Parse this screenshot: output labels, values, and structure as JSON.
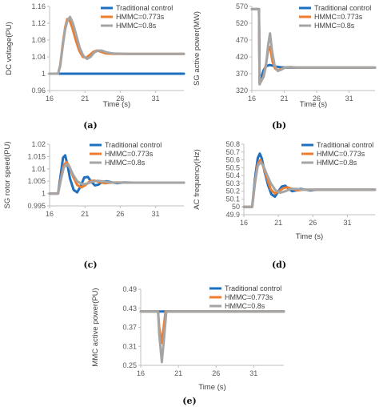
{
  "colors": {
    "traditional": "#1F6FBF",
    "hmmc_0773": "#ED7D31",
    "hmmc_08": "#A5A5A5",
    "axis": "#BFBFBF",
    "text": "#595959"
  },
  "captions": [
    "(a)",
    "(b)",
    "(c)",
    "(d)",
    "(e)"
  ],
  "chart_data": [
    {
      "type": "line",
      "xlabel": "Time (s)",
      "ylabel": "DC voltage(PU)",
      "xlim": [
        16,
        35
      ],
      "xticks": [
        "16",
        "21",
        "26",
        "31"
      ],
      "xtick_values": [
        16,
        21,
        26,
        31
      ],
      "ylim": [
        0.96,
        1.16
      ],
      "yticks": [
        "0.96",
        "1",
        "1.04",
        "1.08",
        "1.12",
        "1.16"
      ],
      "ytick_values": [
        0.96,
        1.0,
        1.04,
        1.08,
        1.12,
        1.16
      ],
      "legend_position": "top-right",
      "series": [
        {
          "name": "Traditional control",
          "x": [
            16,
            35
          ],
          "y": [
            1.0,
            1.0
          ]
        },
        {
          "name": "HMMC=0.773s",
          "x": [
            16,
            17.2,
            17.5,
            17.9,
            18.2,
            18.5,
            18.8,
            19.2,
            19.7,
            20.2,
            20.7,
            21.2,
            21.7,
            22.2,
            22.7,
            23.3,
            24.0,
            25.0,
            27.0,
            30.0,
            35.0
          ],
          "y": [
            1.0,
            1.0,
            1.02,
            1.075,
            1.11,
            1.13,
            1.128,
            1.11,
            1.08,
            1.055,
            1.04,
            1.038,
            1.045,
            1.052,
            1.055,
            1.052,
            1.048,
            1.047,
            1.047,
            1.047,
            1.047
          ]
        },
        {
          "name": "HMMC=0.8s",
          "x": [
            16,
            17.2,
            17.5,
            17.9,
            18.2,
            18.5,
            18.9,
            19.3,
            19.8,
            20.3,
            20.8,
            21.3,
            21.8,
            22.3,
            22.8,
            23.4,
            24.0,
            25.0,
            27.0,
            30.0,
            35.0
          ],
          "y": [
            1.0,
            1.0,
            1.018,
            1.07,
            1.105,
            1.125,
            1.135,
            1.12,
            1.09,
            1.06,
            1.042,
            1.035,
            1.04,
            1.05,
            1.055,
            1.055,
            1.051,
            1.048,
            1.047,
            1.047,
            1.047
          ]
        }
      ]
    },
    {
      "type": "line",
      "xlabel": "Time (s)",
      "ylabel": "SG active power(MW)",
      "xlim": [
        16,
        35
      ],
      "xticks": [
        "16",
        "21",
        "26",
        "31"
      ],
      "xtick_values": [
        16,
        21,
        26,
        31
      ],
      "ylim": [
        320,
        570
      ],
      "yticks": [
        "320",
        "370",
        "420",
        "470",
        "520",
        "570"
      ],
      "ytick_values": [
        320,
        370,
        420,
        470,
        520,
        570
      ],
      "legend_position": "top-right",
      "series": [
        {
          "name": "Traditional control",
          "x": [
            16,
            17.1,
            17.2,
            17.5,
            17.8,
            18.2,
            18.7,
            19.2,
            19.8,
            20.5,
            21.5,
            23.0,
            35.0
          ],
          "y": [
            562,
            562,
            345,
            362,
            380,
            392,
            396,
            394,
            391,
            389,
            388,
            388,
            388
          ]
        },
        {
          "name": "HMMC=0.773s",
          "x": [
            16,
            17.1,
            17.2,
            17.5,
            17.8,
            18.2,
            18.5,
            18.8,
            19.2,
            19.6,
            20.0,
            20.5,
            21.2,
            22.0,
            23.0,
            35.0
          ],
          "y": [
            562,
            562,
            340,
            350,
            362,
            400,
            440,
            450,
            405,
            385,
            380,
            384,
            389,
            389,
            388,
            388
          ]
        },
        {
          "name": "HMMC=0.8s",
          "x": [
            16,
            17.1,
            17.2,
            17.5,
            17.8,
            18.2,
            18.5,
            18.8,
            19.1,
            19.5,
            20.0,
            20.5,
            21.2,
            22.0,
            23.0,
            35.0
          ],
          "y": [
            562,
            562,
            338,
            352,
            360,
            395,
            455,
            490,
            440,
            395,
            378,
            382,
            389,
            390,
            388,
            388
          ]
        }
      ]
    },
    {
      "type": "line",
      "xlabel": "",
      "ylabel": "SG rotor speed(PU)",
      "xlim": [
        16,
        35
      ],
      "xticks": [
        "16",
        "21",
        "26",
        "31"
      ],
      "xtick_values": [
        16,
        21,
        26,
        31
      ],
      "ylim": [
        0.995,
        1.02
      ],
      "yticks": [
        "0.995",
        "1",
        "1.005",
        "1.01",
        "1.015",
        "1.02"
      ],
      "ytick_values": [
        0.995,
        1.0,
        1.005,
        1.01,
        1.015,
        1.02
      ],
      "legend_position": "top-right",
      "series": [
        {
          "name": "Traditional control",
          "x": [
            16,
            17.2,
            17.6,
            17.9,
            18.2,
            18.5,
            18.9,
            19.4,
            19.9,
            20.4,
            20.9,
            21.4,
            21.9,
            22.4,
            22.9,
            23.5,
            24.1,
            24.8,
            25.5,
            26.5,
            28.0,
            35.0
          ],
          "y": [
            1.0,
            1.0,
            1.008,
            1.0145,
            1.0155,
            1.012,
            1.006,
            1.0015,
            1.0005,
            1.003,
            1.0065,
            1.0068,
            1.0048,
            1.0033,
            1.0036,
            1.0048,
            1.005,
            1.0045,
            1.0042,
            1.0045,
            1.0044,
            1.0044
          ]
        },
        {
          "name": "HMMC=0.773s",
          "x": [
            16,
            17.2,
            17.6,
            18.0,
            18.4,
            18.8,
            19.3,
            19.9,
            20.5,
            21.1,
            21.7,
            22.3,
            23.0,
            23.8,
            24.6,
            25.5,
            27.0,
            35.0
          ],
          "y": [
            1.0,
            1.0,
            1.006,
            1.0115,
            1.0128,
            1.011,
            1.007,
            1.0035,
            1.0025,
            1.0035,
            1.005,
            1.0053,
            1.0047,
            1.0042,
            1.0044,
            1.0045,
            1.0044,
            1.0044
          ]
        },
        {
          "name": "HMMC=0.8s",
          "x": [
            16,
            17.2,
            17.6,
            18.0,
            18.4,
            18.8,
            19.3,
            19.9,
            20.6,
            21.3,
            22.0,
            22.8,
            23.6,
            24.5,
            25.5,
            27.0,
            35.0
          ],
          "y": [
            1.0,
            1.0,
            1.0055,
            1.0105,
            1.012,
            1.0108,
            1.0078,
            1.005,
            1.0038,
            1.004,
            1.0048,
            1.0052,
            1.0049,
            1.0045,
            1.0044,
            1.0044,
            1.0044
          ]
        }
      ]
    },
    {
      "type": "line",
      "xlabel": "Time (s)",
      "ylabel": "AC frequency(Hz)",
      "xlim": [
        16,
        35
      ],
      "xticks": [
        "16",
        "21",
        "26",
        "31"
      ],
      "xtick_values": [
        16,
        21,
        26,
        31
      ],
      "ylim": [
        49.9,
        50.8
      ],
      "yticks": [
        "49.9",
        "50",
        "50.1",
        "50.2",
        "50.3",
        "50.4",
        "50.5",
        "50.6",
        "50.7",
        "50.8"
      ],
      "ytick_values": [
        49.9,
        50.0,
        50.1,
        50.2,
        50.3,
        50.4,
        50.5,
        50.6,
        50.7,
        50.8
      ],
      "legend_position": "top-right",
      "series": [
        {
          "name": "Traditional control",
          "x": [
            16,
            17.2,
            17.6,
            18.0,
            18.3,
            18.6,
            19.0,
            19.5,
            20.0,
            20.5,
            21.0,
            21.5,
            22.0,
            22.5,
            23.0,
            23.6,
            24.2,
            24.9,
            25.6,
            26.5,
            28.0,
            35.0
          ],
          "y": [
            50.0,
            50.0,
            50.35,
            50.62,
            50.68,
            50.62,
            50.45,
            50.28,
            50.16,
            50.13,
            50.2,
            50.26,
            50.27,
            50.23,
            50.2,
            50.21,
            50.23,
            50.22,
            50.21,
            50.22,
            50.22,
            50.22
          ]
        },
        {
          "name": "HMMC=0.773s",
          "x": [
            16,
            17.2,
            17.6,
            18.0,
            18.4,
            18.8,
            19.3,
            19.9,
            20.5,
            21.1,
            21.7,
            22.3,
            23.0,
            23.8,
            24.6,
            25.5,
            27.0,
            35.0
          ],
          "y": [
            50.0,
            50.0,
            50.3,
            50.55,
            50.6,
            50.52,
            50.38,
            50.22,
            50.17,
            50.2,
            50.24,
            50.25,
            50.23,
            50.21,
            50.22,
            50.22,
            50.22,
            50.22
          ]
        },
        {
          "name": "HMMC=0.8s",
          "x": [
            16,
            17.2,
            17.6,
            18.0,
            18.4,
            18.8,
            19.3,
            19.9,
            20.6,
            21.3,
            22.0,
            22.8,
            23.6,
            24.5,
            25.5,
            27.0,
            35.0
          ],
          "y": [
            50.0,
            50.0,
            50.3,
            50.52,
            50.57,
            50.53,
            50.42,
            50.3,
            50.21,
            50.18,
            50.2,
            50.23,
            50.23,
            50.22,
            50.22,
            50.22,
            50.22
          ]
        }
      ]
    },
    {
      "type": "line",
      "xlabel": "Time (s)",
      "ylabel": "MMC active power(PU)",
      "xlim": [
        16,
        35
      ],
      "xticks": [
        "16",
        "21",
        "26",
        "31"
      ],
      "xtick_values": [
        16,
        21,
        26,
        31
      ],
      "ylim": [
        0.25,
        0.49
      ],
      "yticks": [
        "0.25",
        "0.31",
        "0.37",
        "0.43",
        "0.49"
      ],
      "ytick_values": [
        0.25,
        0.31,
        0.37,
        0.43,
        0.49
      ],
      "legend_position": "top-right",
      "series": [
        {
          "name": "Traditional control",
          "x": [
            16,
            35
          ],
          "y": [
            0.42,
            0.42
          ]
        },
        {
          "name": "HMMC=0.773s",
          "x": [
            16,
            18.3,
            18.45,
            18.75,
            19.05,
            19.3,
            35
          ],
          "y": [
            0.42,
            0.42,
            0.37,
            0.32,
            0.37,
            0.42,
            0.42
          ]
        },
        {
          "name": "HMMC=0.8s",
          "x": [
            16,
            18.3,
            18.45,
            18.8,
            19.15,
            19.4,
            35
          ],
          "y": [
            0.42,
            0.42,
            0.35,
            0.26,
            0.35,
            0.42,
            0.42
          ]
        }
      ]
    }
  ]
}
